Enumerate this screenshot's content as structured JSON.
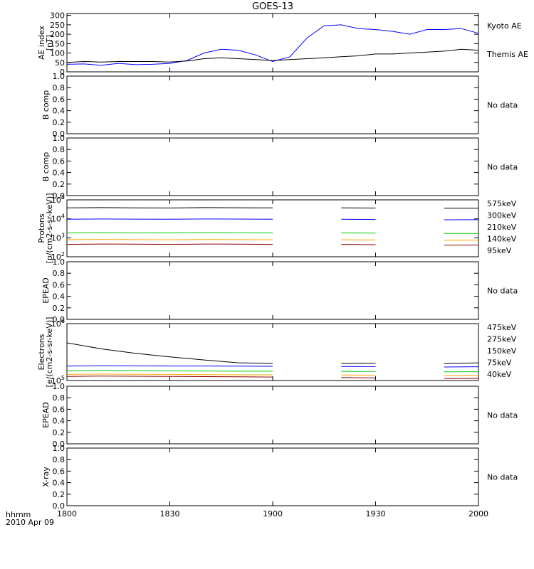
{
  "title": "GOES-13",
  "time_axis": {
    "unit_label": "hhmm",
    "date_label": "2010 Apr 09",
    "range": [
      "1800",
      "2000"
    ],
    "ticks": [
      "1800",
      "1830",
      "1900",
      "1930",
      "2000"
    ]
  },
  "colors": {
    "black": "#000000",
    "blue": "#0000ff",
    "green": "#00cc00",
    "orange": "#ffa500",
    "darkred": "#8b0000"
  },
  "chart_data": [
    {
      "type": "line",
      "panel": "ae",
      "ylabel_lines": [
        "AE index",
        "[nT]"
      ],
      "ylim": [
        0,
        310
      ],
      "yticks": [
        0,
        50,
        100,
        150,
        200,
        250,
        300
      ],
      "x": [
        "1800",
        "1805",
        "1810",
        "1815",
        "1820",
        "1825",
        "1830",
        "1835",
        "1840",
        "1845",
        "1850",
        "1855",
        "1900",
        "1905",
        "1910",
        "1915",
        "1920",
        "1925",
        "1930",
        "1935",
        "1940",
        "1945",
        "1950",
        "1955",
        "2000"
      ],
      "series": [
        {
          "name": "Kyoto AE",
          "color": "#0000ff",
          "values": [
            40,
            42,
            35,
            45,
            38,
            40,
            45,
            60,
            100,
            120,
            115,
            90,
            55,
            80,
            180,
            245,
            250,
            230,
            225,
            215,
            200,
            225,
            225,
            230,
            205
          ]
        },
        {
          "name": "Themis AE",
          "color": "#000000",
          "values": [
            50,
            55,
            52,
            55,
            55,
            55,
            52,
            58,
            70,
            75,
            70,
            65,
            60,
            65,
            70,
            75,
            80,
            85,
            95,
            95,
            100,
            105,
            110,
            120,
            115
          ]
        }
      ]
    },
    {
      "type": "line",
      "panel": "b1",
      "ylabel": "B comp",
      "ylim": [
        0,
        1
      ],
      "yticks": [
        "0.0",
        "0.2",
        "0.4",
        "0.6",
        "0.8",
        "1.0"
      ],
      "status": "No data"
    },
    {
      "type": "line",
      "panel": "b2",
      "ylabel": "B comp",
      "ylim": [
        0,
        1
      ],
      "yticks": [
        "0.0",
        "0.2",
        "0.4",
        "0.6",
        "0.8",
        "1.0"
      ],
      "status": "No data"
    },
    {
      "type": "line",
      "panel": "protons",
      "scale": "log",
      "ylabel_lines": [
        "Protons",
        "[p/(cm2-s-sr-keV)]"
      ],
      "ylim": [
        100,
        100000
      ],
      "yticks": [
        "10^2",
        "10^3",
        "10^4",
        "10^5"
      ],
      "x": [
        "1800",
        "1810",
        "1820",
        "1830",
        "1840",
        "1850",
        "1900",
        "1910",
        "1920",
        "1930",
        "1940",
        "1950",
        "2000"
      ],
      "gaps": [
        [
          "1908",
          "1910"
        ],
        [
          "1933",
          "1934"
        ],
        [
          "1938",
          "1940"
        ]
      ],
      "series": [
        {
          "name": "575keV",
          "color": "#8b0000",
          "values": [
            450,
            470,
            460,
            450,
            470,
            460,
            450,
            440,
            450,
            430,
            420,
            410,
            420
          ]
        },
        {
          "name": "300keV",
          "color": "#ffa500",
          "values": [
            800,
            820,
            800,
            790,
            810,
            800,
            790,
            780,
            790,
            770,
            760,
            740,
            760
          ]
        },
        {
          "name": "210keV",
          "color": "#00cc00",
          "values": [
            1800,
            1850,
            1800,
            1820,
            1860,
            1820,
            1800,
            1780,
            1800,
            1760,
            1720,
            1700,
            1700
          ]
        },
        {
          "name": "140keV",
          "color": "#0000ff",
          "values": [
            9500,
            9800,
            9600,
            9500,
            9800,
            9700,
            9500,
            9400,
            9500,
            9200,
            9100,
            8900,
            9000
          ]
        },
        {
          "name": "95keV",
          "color": "#000000",
          "values": [
            38000,
            39000,
            38000,
            37500,
            39000,
            38500,
            38000,
            37500,
            38000,
            37000,
            36500,
            36000,
            36500
          ]
        }
      ]
    },
    {
      "type": "line",
      "panel": "epead1",
      "ylabel": "EPEAD",
      "ylim": [
        0,
        1
      ],
      "yticks": [
        "0.0",
        "0.2",
        "0.4",
        "0.6",
        "0.8",
        "1.0"
      ],
      "status": "No data"
    },
    {
      "type": "line",
      "panel": "electrons",
      "scale": "log",
      "ylabel_lines": [
        "Electrons",
        "[e/(cm2-s-sr-keV)]"
      ],
      "ylim": [
        100000,
        1000000
      ],
      "yticks": [
        "10^5",
        "10^6"
      ],
      "x": [
        "1800",
        "1810",
        "1820",
        "1830",
        "1840",
        "1850",
        "1900",
        "1910",
        "1920",
        "1930",
        "1940",
        "1950",
        "2000"
      ],
      "gaps": [
        [
          "1908",
          "1910"
        ],
        [
          "1933",
          "1934"
        ],
        [
          "1938",
          "1940"
        ]
      ],
      "series": [
        {
          "name": "475keV",
          "color": "#8b0000",
          "values": [
            118000,
            120000,
            119000,
            118000,
            117000,
            116000,
            115000,
            114000,
            113000,
            111000,
            110000,
            108000,
            109000
          ]
        },
        {
          "name": "275keV",
          "color": "#ffa500",
          "values": [
            128000,
            130000,
            129000,
            128000,
            127000,
            126000,
            126000,
            125000,
            125000,
            124000,
            123000,
            122000,
            123000
          ]
        },
        {
          "name": "150keV",
          "color": "#00cc00",
          "values": [
            148000,
            150000,
            149000,
            148000,
            147000,
            146000,
            146000,
            145000,
            145000,
            144000,
            143000,
            142000,
            143000
          ]
        },
        {
          "name": "75keV",
          "color": "#0000ff",
          "values": [
            180000,
            182000,
            181000,
            180000,
            180000,
            179000,
            178000,
            178000,
            177000,
            176000,
            174000,
            173000,
            175000
          ]
        },
        {
          "name": "40keV",
          "color": "#000000",
          "values": [
            460000,
            360000,
            300000,
            260000,
            230000,
            205000,
            200000,
            200000,
            200000,
            200000,
            198000,
            198000,
            205000
          ]
        }
      ]
    },
    {
      "type": "line",
      "panel": "epead2",
      "ylabel": "EPEAD",
      "ylim": [
        0,
        1
      ],
      "yticks": [
        "0.0",
        "0.2",
        "0.4",
        "0.6",
        "0.8",
        "1.0"
      ],
      "status": "No data"
    },
    {
      "type": "line",
      "panel": "xray",
      "ylabel": "X-ray",
      "ylim": [
        0,
        1
      ],
      "yticks": [
        "0.0",
        "0.2",
        "0.4",
        "0.6",
        "0.8",
        "1.0"
      ],
      "status": "No data"
    }
  ]
}
